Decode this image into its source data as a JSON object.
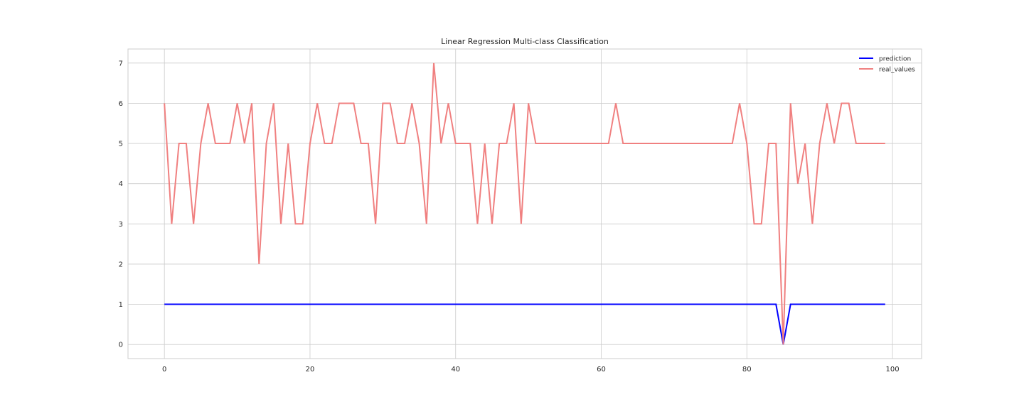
{
  "chart_data": {
    "type": "line",
    "title": "Linear Regression Multi-class Classification",
    "xlabel": "",
    "ylabel": "",
    "xlim": [
      -5,
      104
    ],
    "ylim": [
      -0.35,
      7.35
    ],
    "xticks": [
      0,
      20,
      40,
      60,
      80,
      100
    ],
    "yticks": [
      0,
      1,
      2,
      3,
      4,
      5,
      6,
      7
    ],
    "grid": true,
    "legend": "top-right",
    "series": [
      {
        "name": "prediction",
        "color": "#0000ff",
        "x": [
          0,
          1,
          2,
          3,
          4,
          5,
          6,
          7,
          8,
          9,
          10,
          11,
          12,
          13,
          14,
          15,
          16,
          17,
          18,
          19,
          20,
          21,
          22,
          23,
          24,
          25,
          26,
          27,
          28,
          29,
          30,
          31,
          32,
          33,
          34,
          35,
          36,
          37,
          38,
          39,
          40,
          41,
          42,
          43,
          44,
          45,
          46,
          47,
          48,
          49,
          50,
          51,
          52,
          53,
          54,
          55,
          56,
          57,
          58,
          59,
          60,
          61,
          62,
          63,
          64,
          65,
          66,
          67,
          68,
          69,
          70,
          71,
          72,
          73,
          74,
          75,
          76,
          77,
          78,
          79,
          80,
          81,
          82,
          83,
          84,
          85,
          86,
          87,
          88,
          89,
          90,
          91,
          92,
          93,
          94,
          95,
          96,
          97,
          98,
          99
        ],
        "values": [
          1,
          1,
          1,
          1,
          1,
          1,
          1,
          1,
          1,
          1,
          1,
          1,
          1,
          1,
          1,
          1,
          1,
          1,
          1,
          1,
          1,
          1,
          1,
          1,
          1,
          1,
          1,
          1,
          1,
          1,
          1,
          1,
          1,
          1,
          1,
          1,
          1,
          1,
          1,
          1,
          1,
          1,
          1,
          1,
          1,
          1,
          1,
          1,
          1,
          1,
          1,
          1,
          1,
          1,
          1,
          1,
          1,
          1,
          1,
          1,
          1,
          1,
          1,
          1,
          1,
          1,
          1,
          1,
          1,
          1,
          1,
          1,
          1,
          1,
          1,
          1,
          1,
          1,
          1,
          1,
          1,
          1,
          1,
          1,
          1,
          0,
          1,
          1,
          1,
          1,
          1,
          1,
          1,
          1,
          1,
          1,
          1,
          1,
          1,
          1
        ]
      },
      {
        "name": "real_values",
        "color": "#f08080",
        "x": [
          0,
          1,
          2,
          3,
          4,
          5,
          6,
          7,
          8,
          9,
          10,
          11,
          12,
          13,
          14,
          15,
          16,
          17,
          18,
          19,
          20,
          21,
          22,
          23,
          24,
          25,
          26,
          27,
          28,
          29,
          30,
          31,
          32,
          33,
          34,
          35,
          36,
          37,
          38,
          39,
          40,
          41,
          42,
          43,
          44,
          45,
          46,
          47,
          48,
          49,
          50,
          51,
          52,
          53,
          54,
          55,
          56,
          57,
          58,
          59,
          60,
          61,
          62,
          63,
          64,
          65,
          66,
          67,
          68,
          69,
          70,
          71,
          72,
          73,
          74,
          75,
          76,
          77,
          78,
          79,
          80,
          81,
          82,
          83,
          84,
          85,
          86,
          87,
          88,
          89,
          90,
          91,
          92,
          93,
          94,
          95,
          96,
          97,
          98,
          99
        ],
        "values": [
          6,
          3,
          5,
          5,
          3,
          5,
          6,
          5,
          5,
          5,
          6,
          5,
          6,
          2,
          5,
          6,
          3,
          5,
          3,
          3,
          5,
          6,
          5,
          5,
          6,
          6,
          6,
          5,
          5,
          3,
          6,
          6,
          5,
          5,
          6,
          5,
          3,
          7,
          5,
          6,
          5,
          5,
          5,
          3,
          5,
          3,
          5,
          5,
          6,
          3,
          6,
          5,
          5,
          5,
          5,
          5,
          5,
          5,
          5,
          5,
          5,
          5,
          6,
          5,
          5,
          5,
          5,
          5,
          5,
          5,
          5,
          5,
          5,
          5,
          5,
          5,
          5,
          5,
          5,
          6,
          5,
          3,
          3,
          5,
          5,
          0,
          6,
          4,
          5,
          3,
          5,
          6,
          5,
          6,
          6,
          5,
          5,
          5,
          5,
          5
        ]
      }
    ]
  }
}
